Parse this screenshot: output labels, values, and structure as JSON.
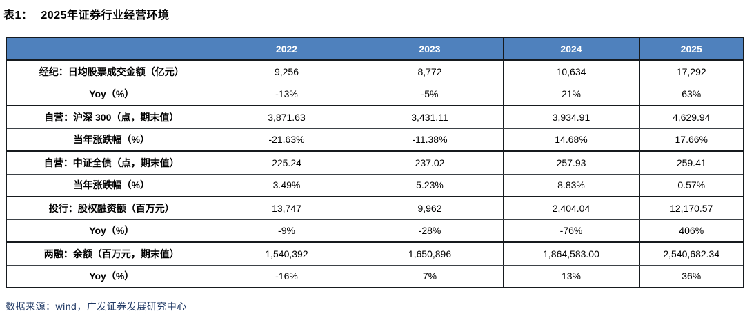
{
  "title": {
    "prefix": "表1：",
    "text": "2025年证券行业经营环境"
  },
  "table": {
    "columns": [
      "",
      "2022",
      "2023",
      "2024",
      "2025"
    ],
    "rows": [
      {
        "label": "经纪：日均股票成交金额（亿元）",
        "values": [
          "9,256",
          "8,772",
          "10,634",
          "17,292"
        ],
        "group_end": false
      },
      {
        "label": "Yoy（%）",
        "values": [
          "-13%",
          "-5%",
          "21%",
          "63%"
        ],
        "group_end": true
      },
      {
        "label": "自营：沪深 300（点，期末值）",
        "values": [
          "3,871.63",
          "3,431.11",
          "3,934.91",
          "4,629.94"
        ],
        "group_end": false
      },
      {
        "label": "当年涨跌幅（%）",
        "values": [
          "-21.63%",
          "-11.38%",
          "14.68%",
          "17.66%"
        ],
        "group_end": true
      },
      {
        "label": "自营：中证全债（点，期末值）",
        "values": [
          "225.24",
          "237.02",
          "257.93",
          "259.41"
        ],
        "group_end": false
      },
      {
        "label": "当年涨跌幅（%）",
        "values": [
          "3.49%",
          "5.23%",
          "8.83%",
          "0.57%"
        ],
        "group_end": true
      },
      {
        "label": "投行：股权融资额（百万元）",
        "values": [
          "13,747",
          "9,962",
          "2,404.04",
          "12,170.57"
        ],
        "group_end": false
      },
      {
        "label": "Yoy（%）",
        "values": [
          "-9%",
          "-28%",
          "-76%",
          "406%"
        ],
        "group_end": true
      },
      {
        "label": "两融：余额（百万元，期末值）",
        "values": [
          "1,540,392",
          "1,650,896",
          "1,864,583.00",
          "2,540,682.34"
        ],
        "group_end": false
      },
      {
        "label": "Yoy（%）",
        "values": [
          "-16%",
          "7%",
          "13%",
          "36%"
        ],
        "group_end": true
      }
    ]
  },
  "footer": {
    "source": "数据来源：wind，广发证券发展研究中心"
  },
  "colors": {
    "header_bg": "#4F81BD",
    "header_text": "#FFFFFF",
    "body_text": "#000000",
    "footer_text": "#1F3864",
    "border_dark": "#161A1E"
  }
}
